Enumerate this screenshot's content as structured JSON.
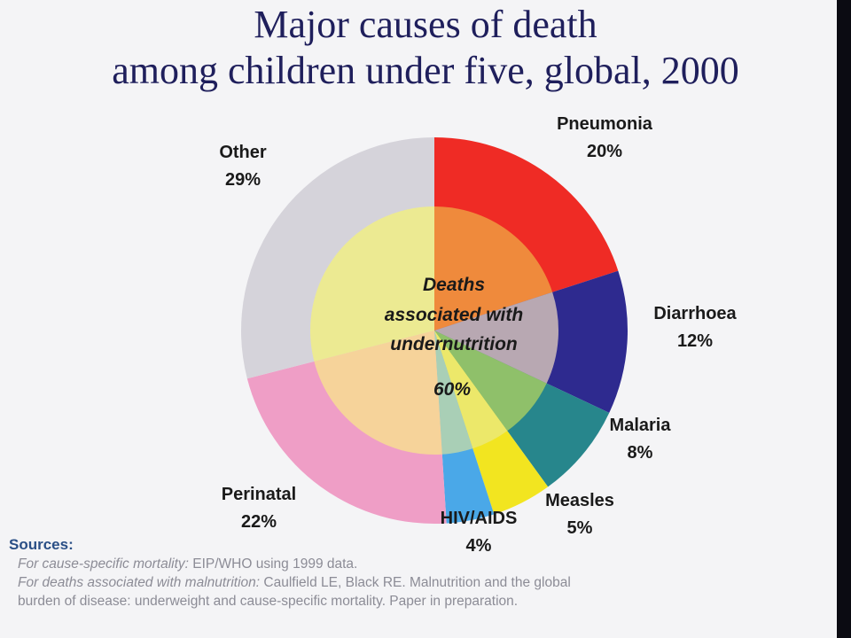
{
  "title_line1": "Major causes of death",
  "title_line2": "among children under five, global, 2000",
  "chart_data": {
    "type": "pie",
    "title": "Major causes of death among children under five, global, 2000",
    "outer_ring": [
      {
        "name": "Pneumonia",
        "value": 20,
        "label": "20%",
        "color": "#ef2b25"
      },
      {
        "name": "Diarrhoea",
        "value": 12,
        "label": "12%",
        "color": "#2e2a8f"
      },
      {
        "name": "Malaria",
        "value": 8,
        "label": "8%",
        "color": "#27868c"
      },
      {
        "name": "Measles",
        "value": 5,
        "label": "5%",
        "color": "#f2e520"
      },
      {
        "name": "HIV/AIDS",
        "value": 4,
        "label": "4%",
        "color": "#4aa8e8"
      },
      {
        "name": "Perinatal",
        "value": 22,
        "label": "22%",
        "color": "#ef9ec6"
      },
      {
        "name": "Other",
        "value": 29,
        "label": "29%",
        "color": "#d5d3da"
      }
    ],
    "inner_disc": {
      "label_lines": [
        "Deaths",
        "associated with",
        "undernutrition"
      ],
      "value": 60,
      "value_label": "60%",
      "colors": [
        "#ef8a3c",
        "#b8a8b2",
        "#8fc06a",
        "#ece86a",
        "#a9cfb6",
        "#f6d39a",
        "#ecea92"
      ]
    }
  },
  "sources": {
    "heading": "Sources:",
    "line1_italic": "For cause-specific mortality:",
    "line1_plain": " EIP/WHO using 1999 data.",
    "line2_italic": "For deaths associated with malnutrition:",
    "line2_plain": " Caulfield LE, Black RE.  Malnutrition and the global",
    "line3_plain": "burden of disease:  underweight and cause-specific mortality.  Paper in preparation."
  }
}
